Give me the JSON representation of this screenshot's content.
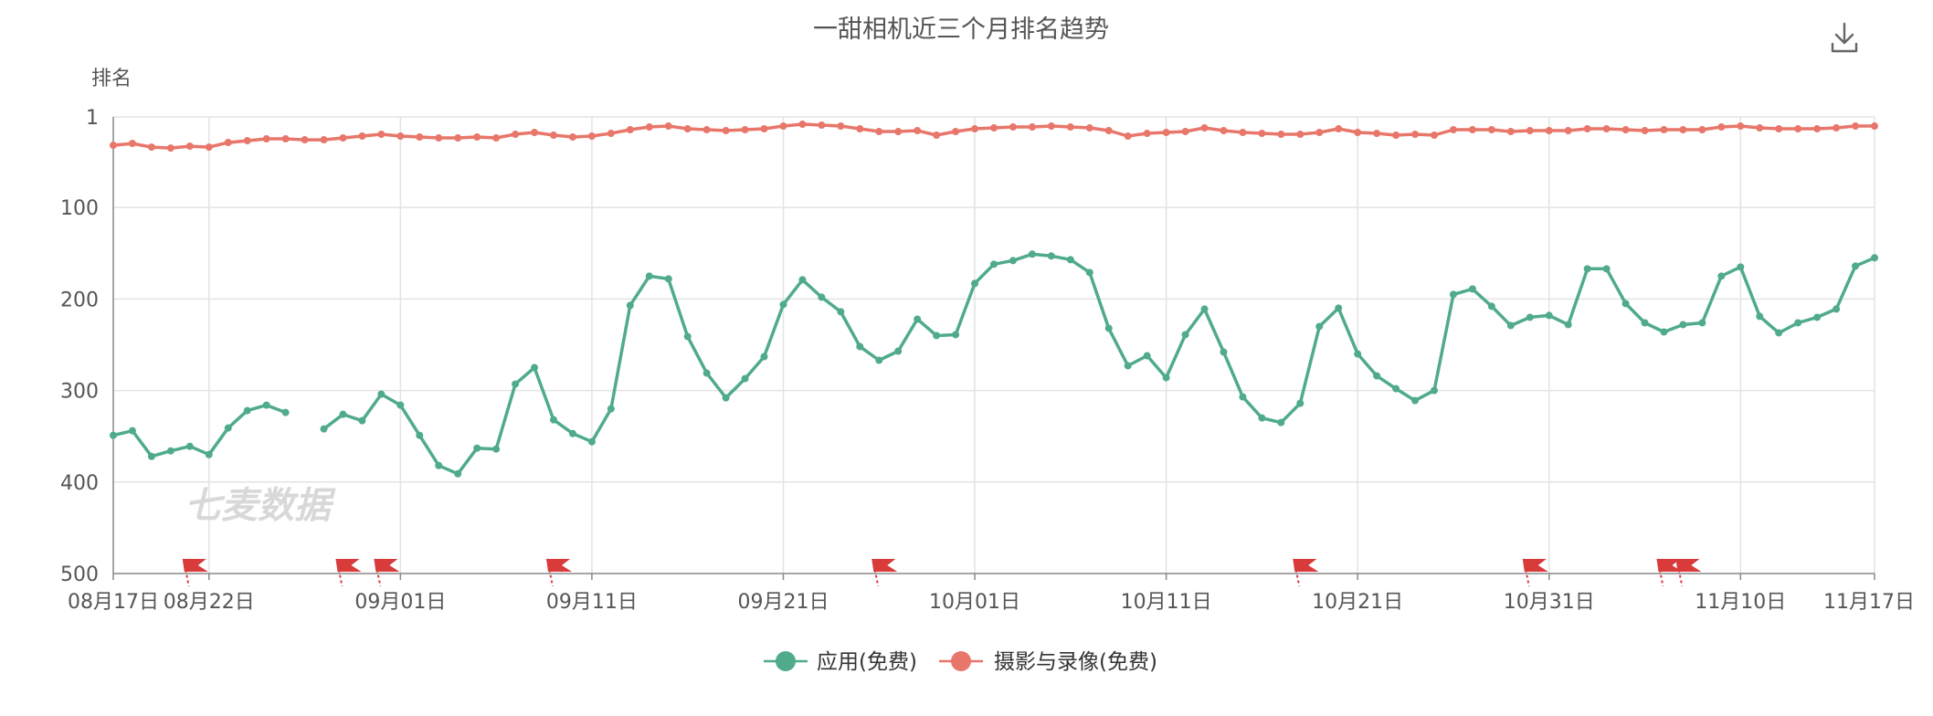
{
  "chart_data": {
    "type": "line",
    "title": "一甜相机近三个月排名趋势",
    "ylabel": "排名",
    "y_axis": {
      "inverted": true,
      "ticks": [
        1,
        100,
        200,
        300,
        400,
        500
      ],
      "range": [
        1,
        500
      ]
    },
    "x_tick_labels": [
      "08月17日",
      "08月22日",
      "09月01日",
      "09月11日",
      "09月21日",
      "10月01日",
      "10月11日",
      "10月21日",
      "10月31日",
      "11月10日",
      "11月17日"
    ],
    "x_tick_days": [
      0,
      5,
      15,
      25,
      35,
      45,
      55,
      65,
      75,
      85,
      92
    ],
    "grid": true,
    "legend_position": "bottom-center",
    "watermark": "七麦数据",
    "series": [
      {
        "name": "应用(免费)",
        "color": "#4fab8a",
        "values": [
          349,
          344,
          372,
          366,
          361,
          370,
          341,
          322,
          316,
          324,
          null,
          342,
          326,
          333,
          304,
          316,
          349,
          382,
          391,
          363,
          364,
          293,
          275,
          332,
          347,
          356,
          320,
          207,
          175,
          178,
          241,
          281,
          308,
          287,
          263,
          206,
          179,
          198,
          214,
          252,
          267,
          257,
          222,
          240,
          239,
          183,
          162,
          158,
          151,
          153,
          157,
          171,
          232,
          273,
          262,
          286,
          239,
          211,
          258,
          307,
          330,
          335,
          314,
          230,
          210,
          260,
          284,
          298,
          311,
          300,
          195,
          189,
          208,
          229,
          220,
          218,
          228,
          167,
          167,
          205,
          226,
          236,
          228,
          226,
          175,
          165,
          219,
          237,
          226,
          220,
          211,
          164,
          155
        ]
      },
      {
        "name": "摄影与录像(免费)",
        "color": "#e8766a",
        "values": [
          32,
          30,
          34,
          35,
          33,
          34,
          29,
          27,
          25,
          25,
          26,
          26,
          24,
          22,
          20,
          22,
          23,
          24,
          24,
          23,
          24,
          20,
          18,
          21,
          23,
          22,
          19,
          15,
          12,
          11,
          14,
          15,
          16,
          15,
          14,
          11,
          9,
          10,
          11,
          14,
          17,
          17,
          16,
          21,
          17,
          14,
          13,
          12,
          12,
          11,
          12,
          13,
          16,
          22,
          19,
          18,
          17,
          13,
          16,
          18,
          19,
          20,
          20,
          18,
          14,
          18,
          19,
          21,
          20,
          21,
          15,
          15,
          15,
          17,
          16,
          16,
          16,
          14,
          14,
          15,
          16,
          15,
          15,
          15,
          12,
          11,
          13,
          14,
          14,
          14,
          13,
          11,
          11
        ]
      }
    ],
    "event_flag_days": [
      4,
      12,
      14,
      23,
      40,
      62,
      74,
      81,
      82
    ]
  },
  "ui": {
    "download_icon": "download-icon"
  }
}
